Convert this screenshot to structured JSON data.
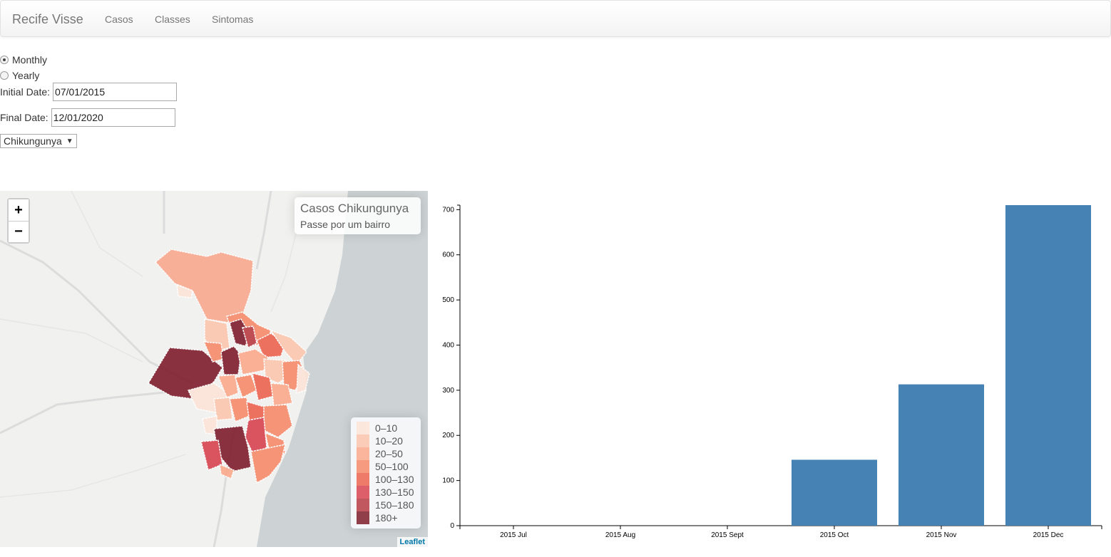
{
  "navbar": {
    "brand": "Recife Visse",
    "links": [
      "Casos",
      "Classes",
      "Sintomas"
    ]
  },
  "controls": {
    "period_options": [
      {
        "label": "Monthly",
        "checked": true
      },
      {
        "label": "Yearly",
        "checked": false
      }
    ],
    "initial_date": {
      "label": "Initial Date:",
      "value": "07/01/2015"
    },
    "final_date": {
      "label": "Final Date:",
      "value": "12/01/2020"
    },
    "disease_select": {
      "value": "Chikungunya"
    }
  },
  "map": {
    "zoom_in": "+",
    "zoom_out": "−",
    "info_title": "Casos Chikungunya",
    "info_subtitle": "Passe por um bairro",
    "legend": [
      {
        "label": "0–10",
        "color": "#fde4d8"
      },
      {
        "label": "10–20",
        "color": "#fcc6ae"
      },
      {
        "label": "20–50",
        "color": "#fba98c"
      },
      {
        "label": "50–100",
        "color": "#f78b6b"
      },
      {
        "label": "100–130",
        "color": "#ec6450"
      },
      {
        "label": "130–150",
        "color": "#d84450"
      },
      {
        "label": "150–180",
        "color": "#b93c44"
      },
      {
        "label": "180+",
        "color": "#7e1d2b"
      }
    ],
    "attribution": "Leaflet"
  },
  "chart_data": {
    "type": "bar",
    "categories": [
      "2015 Jul",
      "2015 Aug",
      "2015 Sept",
      "2015 Oct",
      "2015 Nov",
      "2015 Dec"
    ],
    "values": [
      0,
      0,
      0,
      146,
      313,
      712
    ],
    "ylim": [
      0,
      710
    ],
    "yticks": [
      0,
      100,
      200,
      300,
      400,
      500,
      600,
      700
    ],
    "color": "#4682b4",
    "title": "",
    "xlabel": "",
    "ylabel": ""
  }
}
